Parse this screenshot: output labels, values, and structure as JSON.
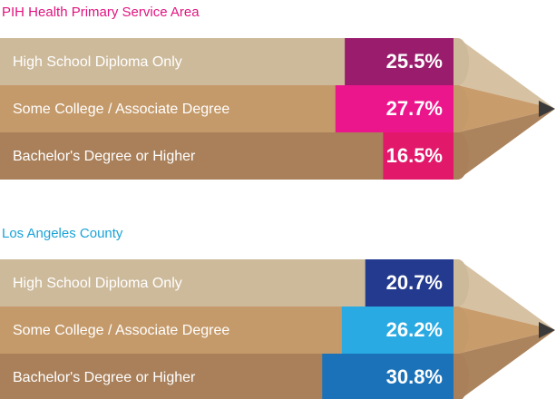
{
  "chart_data": [
    {
      "type": "bar",
      "title": "PIH Health Primary Service Area",
      "title_color": "#e0147f",
      "categories": [
        "High School Diploma Only",
        "Some College / Associate Degree",
        "Bachelor's Degree or Higher"
      ],
      "values": [
        25.5,
        27.7,
        16.5
      ],
      "value_labels": [
        "25.5%",
        "27.7%",
        "16.5%"
      ],
      "colors": [
        "#9a1c6c",
        "#ec168c",
        "#e2186a"
      ]
    },
    {
      "type": "bar",
      "title": "Los Angeles County",
      "title_color": "#1aa3d8",
      "categories": [
        "High School Diploma Only",
        "Some College / Associate Degree",
        "Bachelor's Degree or Higher"
      ],
      "values": [
        20.7,
        26.2,
        30.8
      ],
      "value_labels": [
        "20.7%",
        "26.2%",
        "30.8%"
      ],
      "colors": [
        "#243a8e",
        "#2aaae2",
        "#1b72b8"
      ]
    }
  ]
}
